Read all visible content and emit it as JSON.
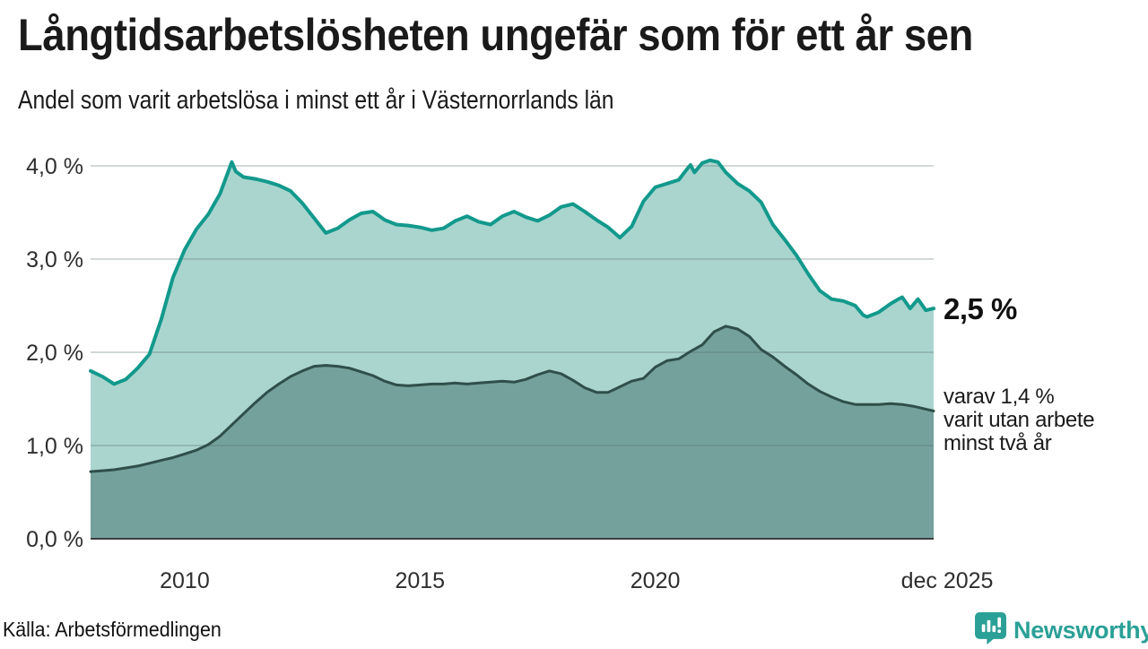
{
  "header": {
    "title": "Långtidsarbetslösheten ungefär som för ett år sen",
    "subtitle": "Andel som varit arbetslösa i minst ett år i Västernorrlands län"
  },
  "chart_data": {
    "type": "area",
    "title": "Långtidsarbetslösheten ungefär som för ett år sen",
    "subtitle": "Andel som varit arbetslösa i minst ett år i Västernorrlands län",
    "x_unit": "months since Jan 2008",
    "x_range_months": [
      0,
      215
    ],
    "ylim": [
      0,
      4.2
    ],
    "grid": true,
    "legend_position": "none",
    "y_ticks": [
      {
        "value": 4,
        "label": "4,0 %"
      },
      {
        "value": 3,
        "label": "3,0 %"
      },
      {
        "value": 2,
        "label": "2,0 %"
      },
      {
        "value": 1,
        "label": "1,0 %"
      },
      {
        "value": 0,
        "label": "0,0 %"
      }
    ],
    "x_ticks": [
      {
        "month": 24,
        "label": "2010"
      },
      {
        "month": 84,
        "label": "2015"
      },
      {
        "month": 144,
        "label": "2020"
      },
      {
        "month": 215,
        "label": "dec 2025"
      }
    ],
    "series": [
      {
        "id": "unemployed_min_one_year",
        "line_color": "#12998c",
        "fill_color": "#aad5cf",
        "line_width": 4,
        "last_value_pct": 2.5,
        "points": [
          [
            0,
            1.8
          ],
          [
            3,
            1.74
          ],
          [
            6,
            1.66
          ],
          [
            9,
            1.71
          ],
          [
            12,
            1.83
          ],
          [
            15,
            1.98
          ],
          [
            18,
            2.35
          ],
          [
            21,
            2.8
          ],
          [
            24,
            3.1
          ],
          [
            27,
            3.32
          ],
          [
            30,
            3.48
          ],
          [
            33,
            3.7
          ],
          [
            36,
            4.04
          ],
          [
            37,
            3.94
          ],
          [
            39,
            3.88
          ],
          [
            42,
            3.86
          ],
          [
            45,
            3.83
          ],
          [
            48,
            3.79
          ],
          [
            51,
            3.73
          ],
          [
            54,
            3.6
          ],
          [
            57,
            3.44
          ],
          [
            60,
            3.28
          ],
          [
            63,
            3.33
          ],
          [
            66,
            3.42
          ],
          [
            69,
            3.49
          ],
          [
            72,
            3.51
          ],
          [
            75,
            3.42
          ],
          [
            78,
            3.37
          ],
          [
            81,
            3.36
          ],
          [
            84,
            3.34
          ],
          [
            87,
            3.31
          ],
          [
            90,
            3.33
          ],
          [
            93,
            3.41
          ],
          [
            96,
            3.46
          ],
          [
            99,
            3.4
          ],
          [
            102,
            3.37
          ],
          [
            105,
            3.46
          ],
          [
            108,
            3.51
          ],
          [
            111,
            3.45
          ],
          [
            114,
            3.41
          ],
          [
            117,
            3.47
          ],
          [
            120,
            3.56
          ],
          [
            123,
            3.59
          ],
          [
            126,
            3.51
          ],
          [
            129,
            3.42
          ],
          [
            132,
            3.34
          ],
          [
            135,
            3.23
          ],
          [
            138,
            3.35
          ],
          [
            141,
            3.62
          ],
          [
            144,
            3.77
          ],
          [
            147,
            3.81
          ],
          [
            150,
            3.85
          ],
          [
            152,
            3.96
          ],
          [
            153,
            4.01
          ],
          [
            154,
            3.93
          ],
          [
            156,
            4.03
          ],
          [
            158,
            4.06
          ],
          [
            160,
            4.04
          ],
          [
            162,
            3.93
          ],
          [
            165,
            3.81
          ],
          [
            168,
            3.73
          ],
          [
            171,
            3.61
          ],
          [
            174,
            3.37
          ],
          [
            177,
            3.21
          ],
          [
            180,
            3.04
          ],
          [
            183,
            2.84
          ],
          [
            186,
            2.66
          ],
          [
            189,
            2.57
          ],
          [
            192,
            2.55
          ],
          [
            195,
            2.5
          ],
          [
            197,
            2.4
          ],
          [
            198,
            2.38
          ],
          [
            201,
            2.43
          ],
          [
            204,
            2.52
          ],
          [
            206,
            2.57
          ],
          [
            207,
            2.59
          ],
          [
            209,
            2.47
          ],
          [
            211,
            2.57
          ],
          [
            213,
            2.45
          ],
          [
            215,
            2.47
          ]
        ]
      },
      {
        "id": "unemployed_min_two_years",
        "line_color": "#2f4f4a",
        "fill_color": "#74a19c",
        "line_width": 3,
        "last_value_pct": 1.4,
        "points": [
          [
            0,
            0.72
          ],
          [
            3,
            0.73
          ],
          [
            6,
            0.74
          ],
          [
            9,
            0.76
          ],
          [
            12,
            0.78
          ],
          [
            15,
            0.81
          ],
          [
            18,
            0.84
          ],
          [
            21,
            0.87
          ],
          [
            24,
            0.91
          ],
          [
            27,
            0.95
          ],
          [
            30,
            1.01
          ],
          [
            33,
            1.1
          ],
          [
            36,
            1.22
          ],
          [
            39,
            1.34
          ],
          [
            42,
            1.46
          ],
          [
            45,
            1.57
          ],
          [
            48,
            1.66
          ],
          [
            51,
            1.74
          ],
          [
            54,
            1.8
          ],
          [
            57,
            1.85
          ],
          [
            60,
            1.86
          ],
          [
            63,
            1.85
          ],
          [
            66,
            1.83
          ],
          [
            69,
            1.79
          ],
          [
            72,
            1.75
          ],
          [
            75,
            1.69
          ],
          [
            78,
            1.65
          ],
          [
            81,
            1.64
          ],
          [
            84,
            1.65
          ],
          [
            87,
            1.66
          ],
          [
            90,
            1.66
          ],
          [
            93,
            1.67
          ],
          [
            96,
            1.66
          ],
          [
            99,
            1.67
          ],
          [
            102,
            1.68
          ],
          [
            105,
            1.69
          ],
          [
            108,
            1.68
          ],
          [
            111,
            1.71
          ],
          [
            114,
            1.76
          ],
          [
            117,
            1.8
          ],
          [
            120,
            1.77
          ],
          [
            123,
            1.7
          ],
          [
            126,
            1.62
          ],
          [
            129,
            1.57
          ],
          [
            132,
            1.57
          ],
          [
            135,
            1.63
          ],
          [
            138,
            1.69
          ],
          [
            141,
            1.72
          ],
          [
            144,
            1.84
          ],
          [
            147,
            1.91
          ],
          [
            150,
            1.93
          ],
          [
            153,
            2.01
          ],
          [
            156,
            2.08
          ],
          [
            159,
            2.22
          ],
          [
            162,
            2.28
          ],
          [
            165,
            2.25
          ],
          [
            168,
            2.17
          ],
          [
            171,
            2.03
          ],
          [
            174,
            1.95
          ],
          [
            177,
            1.85
          ],
          [
            180,
            1.76
          ],
          [
            183,
            1.66
          ],
          [
            186,
            1.58
          ],
          [
            189,
            1.52
          ],
          [
            192,
            1.47
          ],
          [
            195,
            1.44
          ],
          [
            198,
            1.44
          ],
          [
            201,
            1.44
          ],
          [
            204,
            1.45
          ],
          [
            207,
            1.44
          ],
          [
            210,
            1.42
          ],
          [
            213,
            1.39
          ],
          [
            215,
            1.37
          ]
        ]
      }
    ],
    "annotations": {
      "primary": "2,5 %",
      "secondary_lines": [
        "varav 1,4 %",
        "varit utan arbete",
        "minst två år"
      ]
    },
    "colors": {
      "grid": "#d9dddd",
      "axis": "#3d3d3d",
      "tick_text": "#2e2e2e"
    }
  },
  "footer": {
    "source": "Källa: Arbetsförmedlingen",
    "brand": "Newsworthy",
    "brand_color": "#2aa096"
  }
}
